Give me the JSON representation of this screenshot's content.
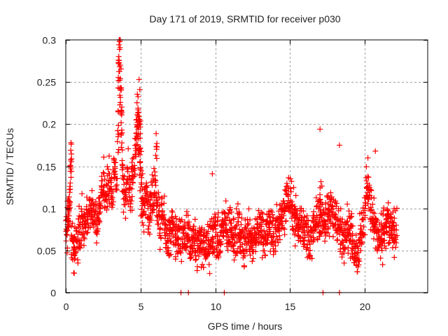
{
  "chart_data": {
    "type": "scatter",
    "title": "Day 171 of 2019, SRMTID for receiver p030",
    "xlabel": "GPS time / hours",
    "ylabel": "SRMTID / TECUs",
    "xlim": [
      0,
      24.2
    ],
    "ylim": [
      0,
      0.3
    ],
    "xticks": [
      0,
      5,
      10,
      15,
      20
    ],
    "xtick_labels": [
      "0",
      "5",
      "10",
      "15",
      "20"
    ],
    "yticks": [
      0,
      0.05,
      0.1,
      0.15,
      0.2,
      0.25,
      0.3
    ],
    "ytick_labels": [
      "0",
      "0.05",
      "0.1",
      "0.15",
      "0.2",
      "0.25",
      "0.3"
    ],
    "grid": true,
    "marker": "plus",
    "color": "#ff0000",
    "series": [
      {
        "name": "SRMTID",
        "x": [
          0.05,
          0.1,
          0.15,
          0.2,
          0.25,
          0.3,
          0.35,
          0.4,
          0.5,
          0.55,
          0.6,
          0.7,
          0.8,
          0.9,
          1.0,
          1.1,
          1.2,
          1.3,
          1.4,
          1.5,
          1.6,
          1.7,
          1.8,
          1.9,
          2.0,
          2.1,
          2.2,
          2.3,
          2.4,
          2.5,
          2.6,
          2.7,
          2.8,
          2.9,
          3.0,
          3.1,
          3.2,
          3.3,
          3.4,
          3.5,
          3.55,
          3.6,
          3.65,
          3.7,
          3.75,
          3.8,
          3.9,
          4.0,
          4.1,
          4.2,
          4.3,
          4.4,
          4.5,
          4.6,
          4.7,
          4.75,
          4.8,
          4.85,
          4.9,
          4.95,
          5.0,
          5.05,
          5.1,
          5.2,
          5.3,
          5.4,
          5.5,
          5.6,
          5.7,
          5.8,
          5.9,
          6.0,
          6.05,
          6.1,
          6.2,
          6.3,
          6.4,
          6.5,
          6.6,
          6.7,
          6.8,
          6.9,
          7.0,
          7.1,
          7.2,
          7.3,
          7.4,
          7.5,
          7.6,
          7.7,
          7.8,
          7.9,
          8.0,
          8.1,
          8.2,
          8.3,
          8.4,
          8.5,
          8.6,
          8.7,
          8.8,
          8.9,
          9.0,
          9.1,
          9.2,
          9.3,
          9.4,
          9.5,
          9.6,
          9.7,
          9.8,
          9.9,
          10.0,
          10.1,
          10.2,
          10.3,
          10.4,
          10.5,
          10.6,
          10.7,
          10.8,
          10.9,
          11.0,
          11.1,
          11.2,
          11.3,
          11.4,
          11.5,
          11.6,
          11.7,
          11.8,
          11.9,
          12.0,
          12.1,
          12.2,
          12.3,
          12.4,
          12.5,
          12.6,
          12.7,
          12.8,
          12.9,
          13.0,
          13.1,
          13.2,
          13.3,
          13.4,
          13.5,
          13.6,
          13.7,
          13.8,
          13.9,
          14.0,
          14.1,
          14.2,
          14.3,
          14.4,
          14.5,
          14.6,
          14.7,
          14.8,
          14.9,
          15.0,
          15.1,
          15.2,
          15.3,
          15.4,
          15.5,
          15.6,
          15.7,
          15.8,
          15.9,
          16.0,
          16.1,
          16.2,
          16.3,
          16.4,
          16.5,
          16.6,
          16.7,
          16.8,
          16.9,
          17.0,
          17.05,
          17.1,
          17.2,
          17.3,
          17.4,
          17.5,
          17.6,
          17.7,
          17.8,
          17.9,
          18.0,
          18.1,
          18.2,
          18.3,
          18.4,
          18.5,
          18.6,
          18.7,
          18.8,
          18.9,
          19.0,
          19.1,
          19.2,
          19.3,
          19.4,
          19.5,
          19.6,
          19.7,
          19.8,
          19.9,
          20.0,
          20.1,
          20.2,
          20.3,
          20.4,
          20.5,
          20.6,
          20.7,
          20.8,
          20.9,
          21.0,
          21.1,
          21.2,
          21.3,
          21.4,
          21.5,
          21.6,
          21.7,
          21.8,
          21.9,
          22.0,
          22.1,
          22.2,
          22.3,
          22.4,
          22.5,
          22.6,
          22.7
        ],
        "y_center": [
          0.075,
          0.08,
          0.085,
          0.09,
          0.1,
          0.14,
          0.15,
          0.065,
          0.06,
          0.05,
          0.055,
          0.06,
          0.065,
          0.07,
          0.08,
          0.085,
          0.075,
          0.08,
          0.09,
          0.085,
          0.095,
          0.1,
          0.1,
          0.09,
          0.095,
          0.085,
          0.1,
          0.11,
          0.12,
          0.13,
          0.12,
          0.11,
          0.125,
          0.13,
          0.12,
          0.11,
          0.14,
          0.15,
          0.13,
          0.2,
          0.27,
          0.29,
          0.24,
          0.22,
          0.18,
          0.14,
          0.12,
          0.11,
          0.13,
          0.14,
          0.12,
          0.13,
          0.15,
          0.16,
          0.18,
          0.2,
          0.21,
          0.19,
          0.17,
          0.2,
          0.15,
          0.12,
          0.11,
          0.1,
          0.11,
          0.12,
          0.1,
          0.09,
          0.1,
          0.11,
          0.12,
          0.13,
          0.17,
          0.11,
          0.09,
          0.08,
          0.085,
          0.09,
          0.08,
          0.07,
          0.065,
          0.06,
          0.07,
          0.075,
          0.065,
          0.06,
          0.07,
          0.065,
          0.06,
          0.055,
          0.065,
          0.07,
          0.06,
          0.07,
          0.065,
          0.055,
          0.06,
          0.065,
          0.06,
          0.055,
          0.05,
          0.06,
          0.065,
          0.055,
          0.05,
          0.055,
          0.06,
          0.055,
          0.05,
          0.06,
          0.065,
          0.07,
          0.075,
          0.065,
          0.06,
          0.055,
          0.07,
          0.08,
          0.085,
          0.075,
          0.07,
          0.075,
          0.08,
          0.075,
          0.07,
          0.065,
          0.07,
          0.075,
          0.07,
          0.065,
          0.06,
          0.055,
          0.065,
          0.07,
          0.075,
          0.07,
          0.065,
          0.06,
          0.065,
          0.07,
          0.075,
          0.08,
          0.075,
          0.07,
          0.065,
          0.06,
          0.07,
          0.075,
          0.08,
          0.075,
          0.07,
          0.065,
          0.07,
          0.075,
          0.08,
          0.085,
          0.09,
          0.095,
          0.1,
          0.105,
          0.11,
          0.115,
          0.11,
          0.1,
          0.095,
          0.09,
          0.085,
          0.08,
          0.075,
          0.08,
          0.085,
          0.08,
          0.075,
          0.07,
          0.065,
          0.06,
          0.065,
          0.07,
          0.075,
          0.08,
          0.085,
          0.09,
          0.095,
          0.1,
          0.095,
          0.09,
          0.085,
          0.08,
          0.085,
          0.09,
          0.095,
          0.1,
          0.095,
          0.09,
          0.085,
          0.08,
          0.075,
          0.07,
          0.065,
          0.07,
          0.075,
          0.08,
          0.075,
          0.07,
          0.065,
          0.06,
          0.055,
          0.05,
          0.045,
          0.05,
          0.06,
          0.07,
          0.08,
          0.1,
          0.12,
          0.13,
          0.12,
          0.1,
          0.09,
          0.08,
          0.075,
          0.07,
          0.065,
          0.06,
          0.065,
          0.07,
          0.075,
          0.08,
          0.085,
          0.08,
          0.075,
          0.07,
          0.065,
          0.07,
          0.075
        ],
        "y_spread": 0.04,
        "notable_outliers": [
          {
            "x": 3.6,
            "y": 0.298
          },
          {
            "x": 3.55,
            "y": 0.273
          },
          {
            "x": 3.5,
            "y": 0.243
          },
          {
            "x": 4.9,
            "y": 0.253
          },
          {
            "x": 4.95,
            "y": 0.241
          },
          {
            "x": 17.0,
            "y": 0.194
          },
          {
            "x": 18.3,
            "y": 0.175
          },
          {
            "x": 20.7,
            "y": 0.168
          },
          {
            "x": 9.8,
            "y": 0.141
          },
          {
            "x": 7.7,
            "y": 0.0
          },
          {
            "x": 8.2,
            "y": 0.0
          },
          {
            "x": 10.6,
            "y": 0.0
          },
          {
            "x": 17.2,
            "y": 0.0
          },
          {
            "x": 18.3,
            "y": 0.0
          }
        ]
      }
    ]
  }
}
